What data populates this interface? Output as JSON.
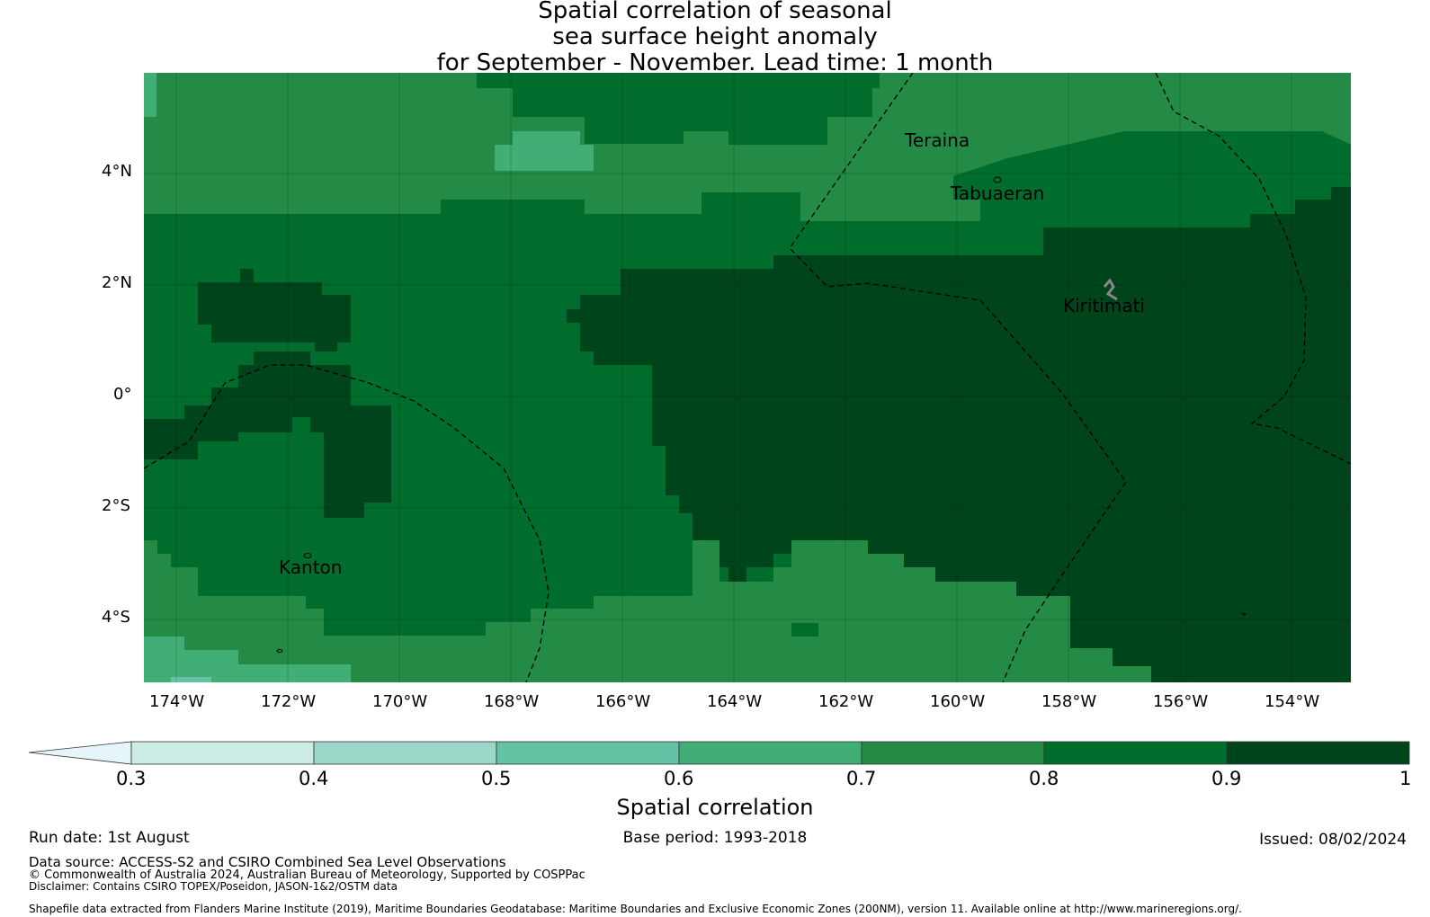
{
  "title": {
    "line1": "Spatial correlation of seasonal",
    "line2": "sea surface height anomaly",
    "line3": "for September - November. Lead time: 1 month"
  },
  "map": {
    "lon_range": [
      -174.6,
      -153
    ],
    "lat_range": [
      -5.1,
      5.8
    ],
    "lon_ticks": [
      "174°W",
      "172°W",
      "170°W",
      "168°W",
      "166°W",
      "164°W",
      "162°W",
      "160°W",
      "158°W",
      "156°W",
      "154°W"
    ],
    "lat_ticks": [
      "4°N",
      "2°N",
      "0°",
      "2°S",
      "4°S"
    ],
    "places": [
      {
        "name": "Teraina",
        "lon": -160.4,
        "lat": 4.6
      },
      {
        "name": "Tabuaeran",
        "lon": -159.4,
        "lat": 3.8
      },
      {
        "name": "Kiritimati",
        "lon": -157.4,
        "lat": 1.9
      },
      {
        "name": "Kanton",
        "lon": -171.7,
        "lat": -2.8
      }
    ],
    "palette": {
      "0.3-0.4": "#ccebe5",
      "0.4-0.5": "#99d8c9",
      "0.5-0.6": "#66c2a4",
      "0.6-0.7": "#41ae76",
      "0.7-0.8": "#238b45",
      "0.8-0.9": "#006d2c",
      "0.9-1": "#00441b"
    }
  },
  "colorbar": {
    "label": "Spatial correlation",
    "ticks": [
      "0.3",
      "0.4",
      "0.5",
      "0.6",
      "0.7",
      "0.8",
      "0.9",
      "1"
    ],
    "under_color": "#e5f5f9",
    "colors": [
      "#ccebe5",
      "#99d8c9",
      "#66c2a4",
      "#41ae76",
      "#238b45",
      "#006d2c",
      "#00441b"
    ]
  },
  "footer": {
    "run_date": "Run date: 1st August",
    "base_period": "Base period: 1993-2018",
    "issued": "Issued: 08/02/2024",
    "data_source": "Data source: ACCESS-S2 and CSIRO Combined Sea Level Observations",
    "copyright": "© Commonwealth of Australia 2024, Australian Bureau of Meteorology, Supported by COSPPac",
    "disclaimer": "Disclaimer: Contains CSIRO TOPEX/Poseidon, JASON-1&2/OSTM data",
    "shapefile": "Shapefile data extracted from Flanders Marine Institute (2019), Maritime Boundaries Geodatabase: Maritime Boundaries and Exclusive Economic Zones (200NM), version 11. Available online at http://www.marineregions.org/."
  }
}
